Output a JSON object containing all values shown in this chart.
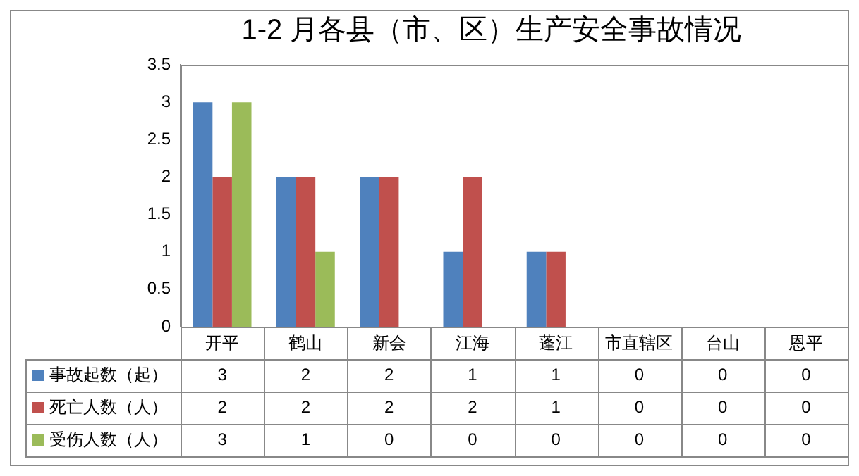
{
  "chart_data": {
    "type": "bar",
    "title": "1-2 月各县（市、区）生产安全事故情况",
    "categories": [
      "开平",
      "鹤山",
      "新会",
      "江海",
      "蓬江",
      "市直辖区",
      "台山",
      "恩平"
    ],
    "series": [
      {
        "name": "事故起数（起）",
        "color": "#4f81bd",
        "values": [
          3,
          2,
          2,
          1,
          1,
          0,
          0,
          0
        ]
      },
      {
        "name": "死亡人数（人）",
        "color": "#c0504d",
        "values": [
          2,
          2,
          2,
          2,
          1,
          0,
          0,
          0
        ]
      },
      {
        "name": "受伤人数（人）",
        "color": "#9bbb59",
        "values": [
          3,
          1,
          0,
          0,
          0,
          0,
          0,
          0
        ]
      }
    ],
    "ylim": [
      0,
      3.5
    ],
    "yticks": [
      0,
      0.5,
      1,
      1.5,
      2,
      2.5,
      3,
      3.5
    ],
    "grid": false,
    "legend": "bottom left",
    "data_labels": true
  }
}
